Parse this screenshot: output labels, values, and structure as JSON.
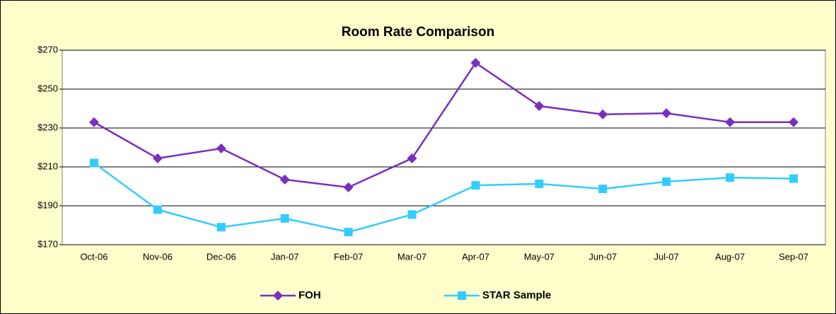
{
  "chart_data": {
    "type": "line",
    "title": "Room Rate Comparison",
    "categories": [
      "Oct-06",
      "Nov-06",
      "Dec-06",
      "Jan-07",
      "Feb-07",
      "Mar-07",
      "Apr-07",
      "May-07",
      "Jun-07",
      "Jul-07",
      "Aug-07",
      "Sep-07"
    ],
    "series": [
      {
        "name": "FOH",
        "color": "#7b2fbe",
        "marker": "diamond",
        "values": [
          233,
          214.4,
          219.5,
          203.5,
          199.5,
          214.4,
          263.5,
          241.3,
          237,
          237.6,
          233,
          233
        ]
      },
      {
        "name": "STAR Sample",
        "color": "#33ccff",
        "marker": "square",
        "values": [
          212,
          188,
          179,
          183.5,
          176.5,
          185.5,
          200.5,
          201.3,
          198.7,
          202.4,
          204.5,
          204
        ]
      }
    ],
    "ylim": [
      170,
      270
    ],
    "yticks": [
      {
        "value": 170,
        "label": "$170"
      },
      {
        "value": 190,
        "label": "$190"
      },
      {
        "value": 210,
        "label": "$210"
      },
      {
        "value": 230,
        "label": "$230"
      },
      {
        "value": 250,
        "label": "$250"
      },
      {
        "value": 270,
        "label": "$270"
      }
    ],
    "grid": true,
    "legend": "bottom"
  }
}
